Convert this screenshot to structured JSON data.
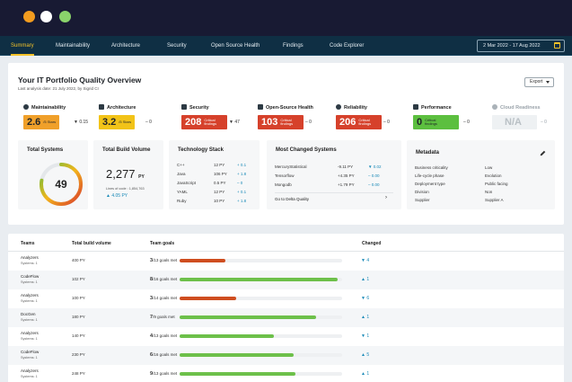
{
  "nav": {
    "items": [
      "Summary",
      "Maintainability",
      "Architecture",
      "Security",
      "Open Source Health",
      "Findings",
      "Code Explorer"
    ],
    "date_range": "2 Mar 2022 - 17 Aug 2022"
  },
  "header": {
    "title": "Your IT Portfolio Quality Overview",
    "subtitle": "Last analysis date: 21 July 2022, by Sigrid CI",
    "export_label": "Export"
  },
  "metrics": [
    {
      "label": "Maintainability",
      "value": "2.6",
      "caption": "/5 Stars",
      "delta": "▼ 0.15",
      "color": "#f0a02a",
      "icon": "gauge-icon"
    },
    {
      "label": "Architecture",
      "value": "3.2",
      "caption": "/5 Stars",
      "delta": "‒ 0",
      "color": "#f2c318",
      "icon": "architecture-icon"
    },
    {
      "label": "Security",
      "value": "208",
      "caption": "Critical findings",
      "delta": "▼ 47",
      "color": "#d6412b",
      "icon": "shield-icon"
    },
    {
      "label": "Open-Source Health",
      "value": "103",
      "caption": "Critical findings",
      "delta": "‒ 0",
      "color": "#d6412b",
      "icon": "plus-box-icon"
    },
    {
      "label": "Reliability",
      "value": "206",
      "caption": "Critical findings",
      "delta": "‒ 0",
      "color": "#d6412b",
      "icon": "reliability-icon"
    },
    {
      "label": "Performance",
      "value": "0",
      "caption": "Critical findings",
      "delta": "‒ 0",
      "color": "#5cbf3f",
      "icon": "rocket-icon"
    },
    {
      "label": "Cloud Readiness",
      "value": "N/A",
      "caption": "",
      "delta": "‒ 0",
      "color": "#eef1f3",
      "icon": "cloud-icon"
    }
  ],
  "total_systems": {
    "title": "Total Systems",
    "value": "49",
    "fraction": 0.78
  },
  "build_volume": {
    "title": "Total Build Volume",
    "value": "2,277",
    "unit": "PY",
    "note": "Lines of code : 1,854,763",
    "trend": "▲ 4.05 PY"
  },
  "tech_stack": {
    "title": "Technology Stack",
    "rows": [
      {
        "name": "C++",
        "value": "12 PY",
        "delta": "+ 0.1"
      },
      {
        "name": "Java",
        "value": "106 PY",
        "delta": "+ 1.8"
      },
      {
        "name": "JavaScript",
        "value": "0.5 PY",
        "delta": "‒ 0"
      },
      {
        "name": "YAML",
        "value": "12 PY",
        "delta": "+ 0.1"
      },
      {
        "name": "Ruby",
        "value": "10 PY",
        "delta": "+ 1.8"
      }
    ]
  },
  "changed": {
    "title": "Most Changed Systems",
    "rows": [
      {
        "name": "MercuryStatistical",
        "value": "-9.11 PY",
        "delta": "▼ 0.02"
      },
      {
        "name": "Tensorflow",
        "value": "+4.35 PY",
        "delta": "‒ 0.00"
      },
      {
        "name": "Mongodb",
        "value": "+1.79 PY",
        "delta": "‒ 0.00"
      }
    ],
    "link": "Go to Delta Quality"
  },
  "metadata": {
    "title": "Metadata",
    "rows": [
      {
        "key": "Business criticality",
        "value": "Low"
      },
      {
        "key": "Life-cycle phase",
        "value": "Evolution"
      },
      {
        "key": "Deployment type",
        "value": "Public facing"
      },
      {
        "key": "Division",
        "value": "Non"
      },
      {
        "key": "Supplier",
        "value": "Supplier A"
      }
    ]
  },
  "teams": {
    "headers": [
      "Teams",
      "Total build volume",
      "Team goals",
      "Changed"
    ],
    "rows": [
      {
        "name": "Analyzers",
        "sub": "Systems: 1",
        "volume": "400 PY",
        "goal_num": "3",
        "goal_text": "/13 goals met",
        "progress": 0.28,
        "color": "#cf4d1f",
        "change": "▼ 4"
      },
      {
        "name": "CodeFlow",
        "sub": "Systems: 1",
        "volume": "102 PY",
        "goal_num": "8",
        "goal_text": "/16 goals met",
        "progress": 0.97,
        "color": "#6dc04a",
        "change": "▲ 1"
      },
      {
        "name": "Analyzers",
        "sub": "Systems: 1",
        "volume": "100 PY",
        "goal_num": "3",
        "goal_text": "/14 goals met",
        "progress": 0.35,
        "color": "#cf4d1f",
        "change": "▼ 6"
      },
      {
        "name": "DocGen",
        "sub": "Systems: 1",
        "volume": "180 PY",
        "goal_num": "7",
        "goal_text": "/9 goals met",
        "progress": 0.84,
        "color": "#6dc04a",
        "change": "▲ 1"
      },
      {
        "name": "Analyzers",
        "sub": "Systems: 1",
        "volume": "140 PY",
        "goal_num": "4",
        "goal_text": "/13 goals met",
        "progress": 0.58,
        "color": "#6dc04a",
        "change": "▼ 1"
      },
      {
        "name": "CodeFlow",
        "sub": "Systems: 1",
        "volume": "230 PY",
        "goal_num": "6",
        "goal_text": "/16 goals met",
        "progress": 0.7,
        "color": "#6dc04a",
        "change": "▲ 5"
      },
      {
        "name": "Analyzers",
        "sub": "Systems: 1",
        "volume": "248 PY",
        "goal_num": "9",
        "goal_text": "/13 goals met",
        "progress": 0.71,
        "color": "#6dc04a",
        "change": "▲ 1"
      }
    ]
  }
}
